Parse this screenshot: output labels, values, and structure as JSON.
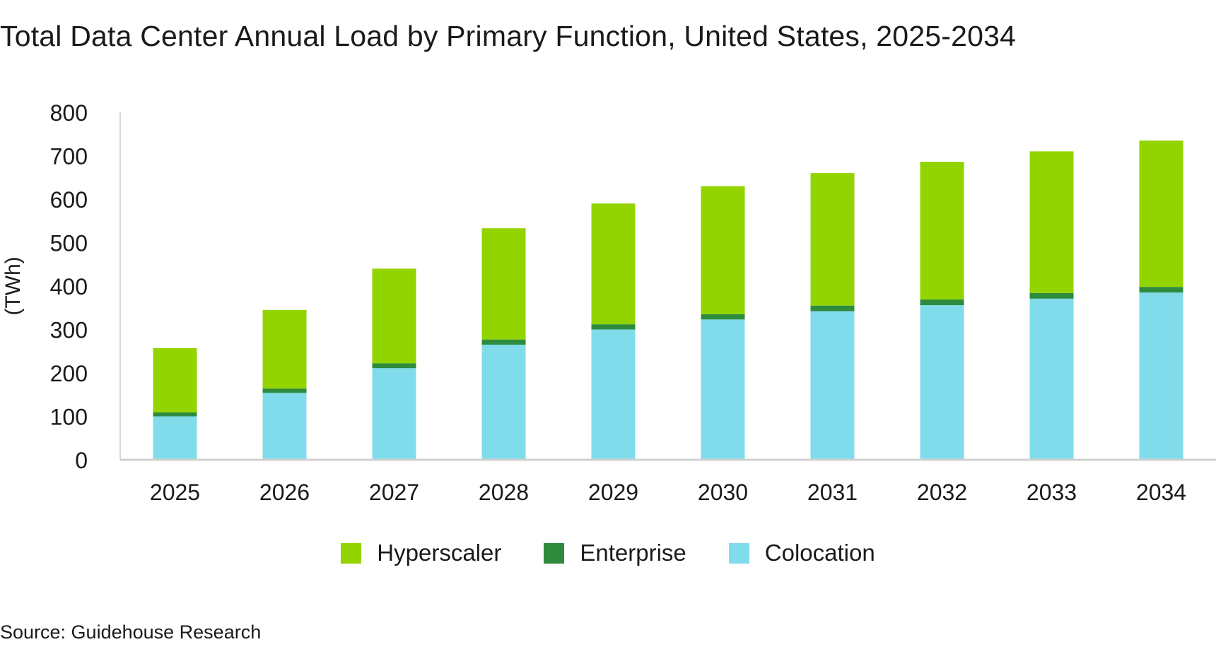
{
  "title": "Total Data Center Annual Load by Primary Function, United States, 2025-2034",
  "source": "Source: Guidehouse Research",
  "colors": {
    "Hyperscaler": "#92d400",
    "Enterprise": "#2e8b3e",
    "Colocation": "#80dcea"
  },
  "chart_data": {
    "type": "bar",
    "stacked": true,
    "categories": [
      "2025",
      "2026",
      "2027",
      "2028",
      "2029",
      "2030",
      "2031",
      "2032",
      "2033",
      "2034"
    ],
    "series": [
      {
        "name": "Colocation",
        "values": [
          100,
          154,
          211,
          265,
          300,
          323,
          342,
          356,
          371,
          385
        ]
      },
      {
        "name": "Enterprise",
        "values": [
          9,
          10,
          11,
          12,
          12,
          12,
          13,
          13,
          13,
          13
        ]
      },
      {
        "name": "Hyperscaler",
        "values": [
          148,
          181,
          218,
          256,
          278,
          295,
          305,
          317,
          326,
          337
        ]
      }
    ],
    "legend_order": [
      "Hyperscaler",
      "Enterprise",
      "Colocation"
    ],
    "title": "Total Data Center Annual Load by Primary Function, United States, 2025-2034",
    "xlabel": "",
    "ylabel": "(TWh)",
    "ylim": [
      0,
      800
    ],
    "yticks": [
      "0",
      "100",
      "200",
      "300",
      "400",
      "500",
      "600",
      "700",
      "800"
    ],
    "grid": false,
    "legend_position": "bottom"
  }
}
